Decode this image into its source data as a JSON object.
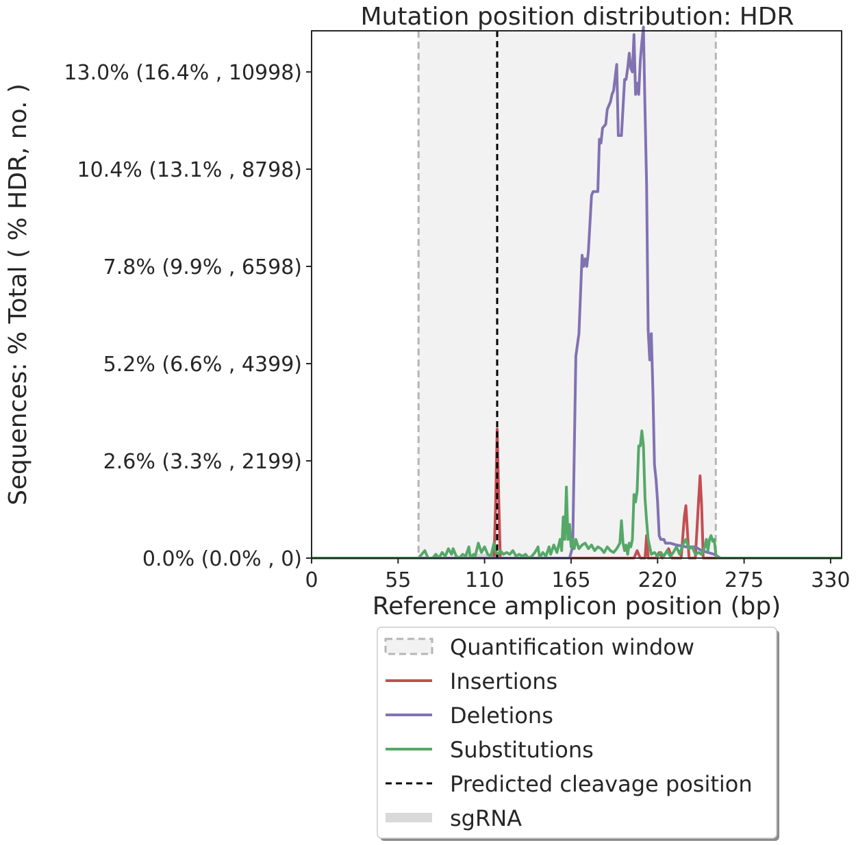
{
  "chart_data": {
    "type": "line",
    "title": "Mutation position distribution: HDR",
    "xlabel": "Reference amplicon position (bp)",
    "ylabel": "Sequences: % Total ( % HDR, no. )",
    "xlim": [
      0,
      337
    ],
    "ylim": [
      0,
      14.1
    ],
    "x_ticks": [
      0,
      55,
      110,
      165,
      220,
      275,
      330
    ],
    "y_ticks": [
      {
        "value": 0.0,
        "label": "0.0% (0.0% , 0)"
      },
      {
        "value": 2.6,
        "label": "2.6% (3.3% , 2199)"
      },
      {
        "value": 5.2,
        "label": "5.2% (6.6% , 4399)"
      },
      {
        "value": 7.8,
        "label": "7.8% (9.9% , 6598)"
      },
      {
        "value": 10.4,
        "label": "10.4% (13.1% , 8798)"
      },
      {
        "value": 13.0,
        "label": "13.0% (16.4% , 10998)"
      }
    ],
    "quantification_window": [
      68,
      257
    ],
    "predicted_cleavage_position": 118,
    "sgrna": [
      98,
      118
    ],
    "grid": false,
    "legend_position": "below",
    "series": [
      {
        "name": "Insertions",
        "color": "#c44e52",
        "points": [
          [
            0,
            0
          ],
          [
            116,
            0
          ],
          [
            117,
            1.4
          ],
          [
            118,
            3.45
          ],
          [
            119,
            1.6
          ],
          [
            120,
            0
          ],
          [
            205,
            0
          ],
          [
            207,
            0.2
          ],
          [
            209,
            0
          ],
          [
            212,
            0
          ],
          [
            213,
            0.6
          ],
          [
            214,
            0
          ],
          [
            219,
            0
          ],
          [
            221,
            0.15
          ],
          [
            223,
            0
          ],
          [
            227,
            0.25
          ],
          [
            229,
            0
          ],
          [
            235,
            0
          ],
          [
            237,
            1.1
          ],
          [
            238,
            1.4
          ],
          [
            240,
            0
          ],
          [
            244,
            0
          ],
          [
            246,
            1.5
          ],
          [
            247,
            2.2
          ],
          [
            248,
            1.4
          ],
          [
            249,
            0
          ],
          [
            337,
            0
          ]
        ]
      },
      {
        "name": "Deletions",
        "color": "#8172b2",
        "points": [
          [
            0,
            0
          ],
          [
            164,
            0
          ],
          [
            166,
            0.3
          ],
          [
            168,
            5.4
          ],
          [
            170,
            6.0
          ],
          [
            172,
            8.1
          ],
          [
            173,
            7.8
          ],
          [
            174,
            8.0
          ],
          [
            175,
            7.8
          ],
          [
            176,
            8.2
          ],
          [
            178,
            9.7
          ],
          [
            179,
            9.8
          ],
          [
            182,
            9.8
          ],
          [
            183,
            11.2
          ],
          [
            184,
            11.1
          ],
          [
            185,
            11.5
          ],
          [
            187,
            11.6
          ],
          [
            188,
            12.0
          ],
          [
            189,
            12.1
          ],
          [
            190,
            12.2
          ],
          [
            191,
            12.4
          ],
          [
            192,
            12.5
          ],
          [
            194,
            13.2
          ],
          [
            195,
            11.3
          ],
          [
            197,
            11.3
          ],
          [
            199,
            12.8
          ],
          [
            200,
            12.8
          ],
          [
            201,
            13.1
          ],
          [
            202,
            13.5
          ],
          [
            203,
            13.1
          ],
          [
            204,
            13.0
          ],
          [
            205,
            14.0
          ],
          [
            206,
            12.4
          ],
          [
            207,
            12.7
          ],
          [
            208,
            12.4
          ],
          [
            209,
            13.3
          ],
          [
            210,
            13.8
          ],
          [
            211,
            14.2
          ],
          [
            212,
            12.0
          ],
          [
            213,
            10.0
          ],
          [
            214,
            6.1
          ],
          [
            215,
            5.3
          ],
          [
            216,
            6.0
          ],
          [
            217,
            4.5
          ],
          [
            218,
            2.5
          ],
          [
            219,
            2.1
          ],
          [
            220,
            1.5
          ],
          [
            221,
            0.6
          ],
          [
            222,
            0.5
          ],
          [
            224,
            0.5
          ],
          [
            225,
            0.4
          ],
          [
            228,
            0.4
          ],
          [
            232,
            0.35
          ],
          [
            238,
            0.3
          ],
          [
            244,
            0.3
          ],
          [
            248,
            0.2
          ],
          [
            252,
            0.15
          ],
          [
            256,
            0.1
          ],
          [
            258,
            0.05
          ],
          [
            260,
            0
          ],
          [
            337,
            0
          ]
        ]
      },
      {
        "name": "Substitutions",
        "color": "#55a868",
        "points": [
          [
            0,
            0
          ],
          [
            68,
            0
          ],
          [
            70,
            0.1
          ],
          [
            72,
            0.2
          ],
          [
            74,
            0
          ],
          [
            77,
            0
          ],
          [
            79,
            0.1
          ],
          [
            81,
            0
          ],
          [
            83,
            0.15
          ],
          [
            85,
            0.05
          ],
          [
            87,
            0.25
          ],
          [
            89,
            0.1
          ],
          [
            90,
            0.25
          ],
          [
            92,
            0.05
          ],
          [
            94,
            0
          ],
          [
            96,
            0.1
          ],
          [
            98,
            0.05
          ],
          [
            100,
            0.3
          ],
          [
            101,
            0
          ],
          [
            103,
            0.1
          ],
          [
            104,
            0.05
          ],
          [
            106,
            0.4
          ],
          [
            108,
            0.15
          ],
          [
            110,
            0.3
          ],
          [
            112,
            0.1
          ],
          [
            114,
            0.05
          ],
          [
            116,
            0.4
          ],
          [
            118,
            0.05
          ],
          [
            120,
            0.2
          ],
          [
            122,
            0.1
          ],
          [
            124,
            0.15
          ],
          [
            126,
            0.1
          ],
          [
            128,
            0.2
          ],
          [
            130,
            0.05
          ],
          [
            132,
            0.1
          ],
          [
            134,
            0.05
          ],
          [
            136,
            0.1
          ],
          [
            138,
            0
          ],
          [
            140,
            0.05
          ],
          [
            142,
            0.15
          ],
          [
            144,
            0.3
          ],
          [
            145,
            0
          ],
          [
            147,
            0.15
          ],
          [
            149,
            0.05
          ],
          [
            151,
            0.3
          ],
          [
            152,
            0.1
          ],
          [
            154,
            0.35
          ],
          [
            156,
            0.15
          ],
          [
            158,
            0.5
          ],
          [
            159,
            0.2
          ],
          [
            160,
            1.1
          ],
          [
            161,
            0.5
          ],
          [
            162,
            1.9
          ],
          [
            163,
            0.5
          ],
          [
            164,
            0.9
          ],
          [
            165,
            0.3
          ],
          [
            166,
            0.5
          ],
          [
            167,
            0.25
          ],
          [
            168,
            0.5
          ],
          [
            170,
            0.25
          ],
          [
            172,
            0.35
          ],
          [
            174,
            0.4
          ],
          [
            176,
            0.25
          ],
          [
            178,
            0.35
          ],
          [
            180,
            0.2
          ],
          [
            182,
            0.3
          ],
          [
            184,
            0.25
          ],
          [
            186,
            0.15
          ],
          [
            188,
            0.3
          ],
          [
            190,
            0.2
          ],
          [
            192,
            0.15
          ],
          [
            194,
            0.25
          ],
          [
            196,
            0.4
          ],
          [
            197,
            1.0
          ],
          [
            198,
            0.4
          ],
          [
            199,
            0.2
          ],
          [
            200,
            0.35
          ],
          [
            201,
            0.1
          ],
          [
            202,
            0.4
          ],
          [
            203,
            0.3
          ],
          [
            204,
            0.5
          ],
          [
            205,
            1.7
          ],
          [
            206,
            1.5
          ],
          [
            207,
            1.8
          ],
          [
            208,
            3.0
          ],
          [
            209,
            3.0
          ],
          [
            210,
            3.4
          ],
          [
            211,
            3.0
          ],
          [
            212,
            1.6
          ],
          [
            213,
            1.0
          ],
          [
            214,
            0.5
          ],
          [
            215,
            0.3
          ],
          [
            216,
            0.1
          ],
          [
            218,
            0.15
          ],
          [
            220,
            0.05
          ],
          [
            222,
            0.15
          ],
          [
            224,
            0.05
          ],
          [
            226,
            0.2
          ],
          [
            228,
            0.05
          ],
          [
            230,
            0.15
          ],
          [
            232,
            0.3
          ],
          [
            234,
            0.1
          ],
          [
            236,
            0.35
          ],
          [
            238,
            0.5
          ],
          [
            240,
            0.25
          ],
          [
            242,
            0.3
          ],
          [
            244,
            0.1
          ],
          [
            246,
            0.15
          ],
          [
            248,
            0.1
          ],
          [
            250,
            0.3
          ],
          [
            251,
            0.5
          ],
          [
            252,
            0.2
          ],
          [
            253,
            0.5
          ],
          [
            254,
            0.6
          ],
          [
            255,
            0.45
          ],
          [
            256,
            0.5
          ],
          [
            257,
            0.1
          ],
          [
            258,
            0
          ],
          [
            337,
            0
          ]
        ]
      }
    ],
    "legend": [
      {
        "label": "Quantification window",
        "kind": "window"
      },
      {
        "label": "Insertions",
        "kind": "line",
        "color": "#c44e52"
      },
      {
        "label": "Deletions",
        "kind": "line",
        "color": "#8172b2"
      },
      {
        "label": "Substitutions",
        "kind": "line",
        "color": "#55a868"
      },
      {
        "label": "Predicted cleavage position",
        "kind": "dashed",
        "color": "#000000"
      },
      {
        "label": "sgRNA",
        "kind": "band",
        "color": "#d9d9d9"
      }
    ]
  }
}
